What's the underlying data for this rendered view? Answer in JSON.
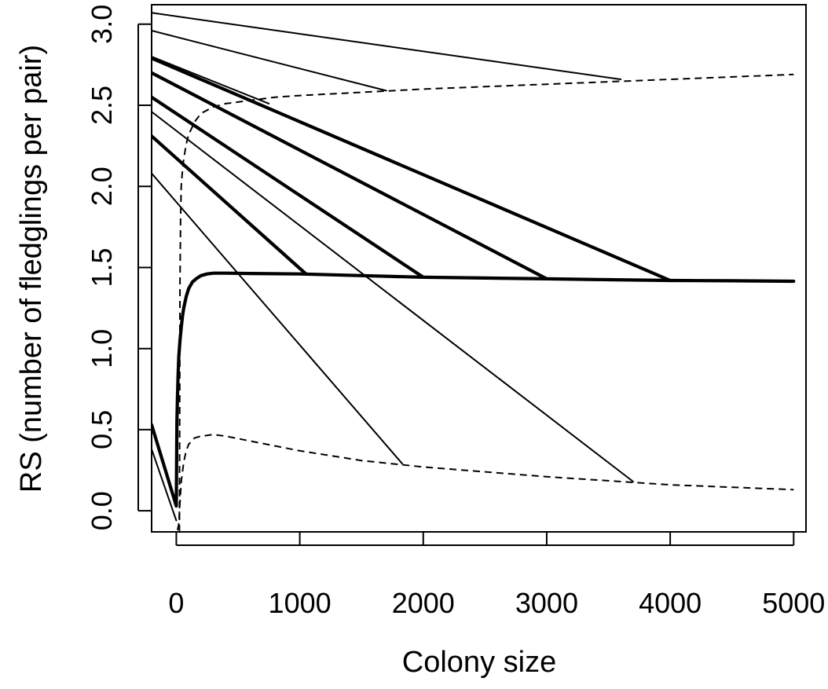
{
  "chart_data": {
    "type": "line",
    "title": "",
    "xlabel": "Colony size",
    "ylabel": "RS (number of fledglings per pair)",
    "xlim": [
      -200,
      5100
    ],
    "ylim": [
      -0.13,
      3.12
    ],
    "xticks": [
      0,
      1000,
      2000,
      3000,
      4000,
      5000
    ],
    "yticks": [
      0.0,
      0.5,
      1.0,
      1.5,
      2.0,
      2.5,
      3.0
    ],
    "xtick_labels": [
      "0",
      "1000",
      "2000",
      "3000",
      "4000",
      "5000"
    ],
    "ytick_labels": [
      "0.0",
      "0.5",
      "1.0",
      "1.5",
      "2.0",
      "2.5",
      "3.0"
    ],
    "grid": false,
    "legend": "none",
    "series": [
      {
        "style": "thick-solid",
        "x": [
          0,
          5,
          10,
          15,
          20,
          30,
          40,
          50,
          60,
          80,
          100,
          130,
          160,
          200,
          250,
          300,
          400,
          600,
          1000,
          1500,
          2000,
          2500,
          3000,
          3500,
          4000,
          4500,
          5000
        ],
        "y": [
          0.03,
          0.55,
          0.72,
          0.85,
          0.95,
          1.05,
          1.13,
          1.2,
          1.25,
          1.32,
          1.37,
          1.41,
          1.43,
          1.45,
          1.46,
          1.465,
          1.465,
          1.463,
          1.46,
          1.45,
          1.44,
          1.435,
          1.43,
          1.425,
          1.42,
          1.418,
          1.415
        ]
      },
      {
        "style": "dashed",
        "x": [
          25,
          30,
          35,
          40,
          50,
          60,
          80,
          100,
          150,
          200,
          300,
          400,
          600,
          800,
          1000,
          1500,
          2000,
          3000,
          4000,
          5000
        ],
        "y": [
          -0.13,
          1.4,
          1.8,
          2.0,
          2.1,
          2.17,
          2.26,
          2.32,
          2.4,
          2.45,
          2.49,
          2.51,
          2.53,
          2.55,
          2.56,
          2.58,
          2.6,
          2.63,
          2.66,
          2.69
        ]
      },
      {
        "style": "dashed",
        "x": [
          10,
          20,
          30,
          40,
          60,
          80,
          100,
          150,
          200,
          300,
          400,
          600,
          800,
          1000,
          1500,
          2000,
          3000,
          4000,
          5000
        ],
        "y": [
          -0.12,
          -0.08,
          0.05,
          0.18,
          0.3,
          0.37,
          0.41,
          0.45,
          0.46,
          0.47,
          0.46,
          0.43,
          0.4,
          0.37,
          0.31,
          0.27,
          0.21,
          0.16,
          0.13
        ]
      },
      {
        "style": "thin-solid",
        "x": [
          -200,
          3600
        ],
        "y": [
          3.07,
          2.66
        ]
      },
      {
        "style": "thin-solid",
        "x": [
          -200,
          1700
        ],
        "y": [
          2.96,
          2.59
        ]
      },
      {
        "style": "thin-solid",
        "x": [
          -200,
          750
        ],
        "y": [
          2.8,
          2.51
        ]
      },
      {
        "style": "thick-solid",
        "x": [
          -200,
          4000
        ],
        "y": [
          2.79,
          1.42
        ]
      },
      {
        "style": "thick-solid",
        "x": [
          -200,
          3000
        ],
        "y": [
          2.7,
          1.43
        ]
      },
      {
        "style": "thick-solid",
        "x": [
          -200,
          2000
        ],
        "y": [
          2.55,
          1.44
        ]
      },
      {
        "style": "thin-solid",
        "x": [
          -200,
          3700
        ],
        "y": [
          2.46,
          0.18
        ]
      },
      {
        "style": "thick-solid",
        "x": [
          -200,
          1050
        ],
        "y": [
          2.31,
          1.46
        ]
      },
      {
        "style": "thin-solid",
        "x": [
          -200,
          1830
        ],
        "y": [
          2.08,
          0.29
        ]
      },
      {
        "style": "thick-solid",
        "x": [
          -200,
          0
        ],
        "y": [
          0.53,
          0.03
        ]
      },
      {
        "style": "thin-solid",
        "x": [
          -200,
          0
        ],
        "y": [
          0.38,
          -0.06
        ]
      }
    ]
  }
}
